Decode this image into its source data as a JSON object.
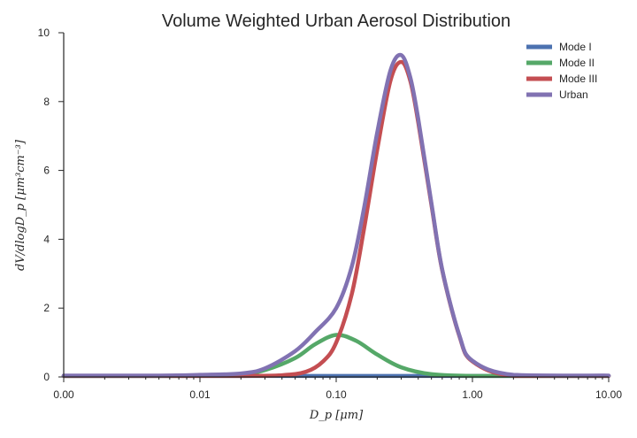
{
  "chart_data": {
    "type": "line",
    "title": "Volume Weighted Urban Aerosol Distribution",
    "xlabel": "D_p [μm]",
    "ylabel": "dV/dlogD_p [μm³cm⁻³]",
    "x_scale": "log",
    "xlim": [
      0.001,
      10
    ],
    "ylim": [
      0,
      10
    ],
    "x_tick_values": [
      0.001,
      0.01,
      0.1,
      1,
      10
    ],
    "x_tick_labels": [
      "0.00",
      "0.01",
      "0.10",
      "1.00",
      "10.00"
    ],
    "y_ticks": [
      0,
      2,
      4,
      6,
      8,
      10
    ],
    "y_tick_labels": [
      "0",
      "2",
      "4",
      "6",
      "8",
      "10"
    ],
    "grid": false,
    "legend_position": "top-right",
    "series": [
      {
        "name": "Mode I",
        "color": "#4c72b0",
        "x": [
          0.001,
          0.003,
          0.01,
          0.03,
          0.1,
          0.3,
          1,
          3,
          10
        ],
        "y": [
          0.03,
          0.03,
          0.03,
          0.03,
          0.03,
          0.03,
          0.03,
          0.03,
          0.03
        ]
      },
      {
        "name": "Mode II",
        "color": "#55a868",
        "x": [
          0.001,
          0.005,
          0.01,
          0.02,
          0.03,
          0.05,
          0.07,
          0.1,
          0.14,
          0.2,
          0.3,
          0.5,
          1,
          3,
          10
        ],
        "y": [
          0.03,
          0.03,
          0.04,
          0.08,
          0.2,
          0.55,
          0.95,
          1.22,
          1.05,
          0.65,
          0.28,
          0.08,
          0.03,
          0.03,
          0.03
        ]
      },
      {
        "name": "Mode III",
        "color": "#c44e52",
        "x": [
          0.001,
          0.02,
          0.04,
          0.06,
          0.08,
          0.1,
          0.13,
          0.16,
          0.2,
          0.25,
          0.3,
          0.35,
          0.4,
          0.5,
          0.6,
          0.8,
          1,
          2,
          10
        ],
        "y": [
          0.03,
          0.03,
          0.05,
          0.15,
          0.45,
          1.0,
          2.4,
          4.3,
          6.6,
          8.6,
          9.15,
          8.6,
          7.4,
          5.0,
          3.1,
          1.2,
          0.45,
          0.03,
          0.03
        ]
      },
      {
        "name": "Urban",
        "color": "#8172b2",
        "x": [
          0.001,
          0.005,
          0.01,
          0.02,
          0.03,
          0.05,
          0.07,
          0.1,
          0.13,
          0.16,
          0.2,
          0.25,
          0.3,
          0.35,
          0.4,
          0.5,
          0.6,
          0.8,
          1,
          2,
          10
        ],
        "y": [
          0.04,
          0.04,
          0.06,
          0.1,
          0.25,
          0.75,
          1.3,
          2.0,
          3.2,
          4.9,
          7.1,
          8.9,
          9.35,
          8.7,
          7.5,
          5.05,
          3.12,
          1.22,
          0.47,
          0.06,
          0.04
        ]
      }
    ]
  }
}
